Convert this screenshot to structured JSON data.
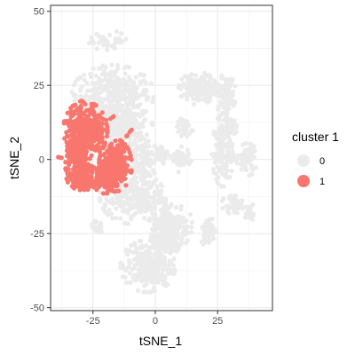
{
  "chart_data": {
    "type": "scatter",
    "xlabel": "tSNE_1",
    "ylabel": "tSNE_2",
    "xlim": [
      -42,
      47
    ],
    "ylim": [
      -51,
      52
    ],
    "x_ticks": [
      -25,
      0,
      25
    ],
    "x_tick_labels": [
      "-25",
      "0",
      "25"
    ],
    "y_ticks": [
      -50,
      -25,
      0,
      25,
      50
    ],
    "y_tick_labels": [
      "-50",
      "-25",
      "0",
      "25",
      "50"
    ],
    "grid": true,
    "theme": "bw",
    "legend": {
      "title": "cluster 1",
      "placement": "right",
      "entries": [
        {
          "label": "0",
          "color": "#ebebeb"
        },
        {
          "label": "1",
          "color": "#f8766d"
        }
      ]
    },
    "series": [
      {
        "name": "0",
        "color": "#ebebeb",
        "clusters": [
          {
            "cx": -17,
            "cy": 22,
            "rx": 15,
            "ry": 9,
            "n": 360
          },
          {
            "cx": -13,
            "cy": 10,
            "rx": 11,
            "ry": 8,
            "n": 260
          },
          {
            "cx": -24,
            "cy": 14,
            "rx": 8,
            "ry": 6,
            "n": 140
          },
          {
            "cx": 17,
            "cy": 24,
            "rx": 7,
            "ry": 5,
            "n": 160
          },
          {
            "cx": 28,
            "cy": 22,
            "rx": 4,
            "ry": 6,
            "n": 90
          },
          {
            "cx": 30,
            "cy": 11,
            "rx": 3,
            "ry": 3,
            "n": 40
          },
          {
            "cx": 12,
            "cy": 11,
            "rx": 3,
            "ry": 3,
            "n": 40
          },
          {
            "cx": 27,
            "cy": 3,
            "rx": 4,
            "ry": 11,
            "n": 150
          },
          {
            "cx": 37,
            "cy": 0,
            "rx": 4,
            "ry": 5,
            "n": 60
          },
          {
            "cx": 10,
            "cy": 0,
            "rx": 4,
            "ry": 4,
            "n": 50
          },
          {
            "cx": -5,
            "cy": 0,
            "rx": 6,
            "ry": 6,
            "n": 100
          },
          {
            "cx": 3,
            "cy": 2,
            "rx": 3,
            "ry": 3,
            "n": 30
          },
          {
            "cx": -9,
            "cy": -13,
            "rx": 12,
            "ry": 8,
            "n": 260
          },
          {
            "cx": 6,
            "cy": -22,
            "rx": 8,
            "ry": 8,
            "n": 170
          },
          {
            "cx": 21,
            "cy": -24,
            "rx": 3,
            "ry": 5,
            "n": 50
          },
          {
            "cx": 31,
            "cy": -15,
            "rx": 4,
            "ry": 3,
            "n": 40
          },
          {
            "cx": 38,
            "cy": -18,
            "rx": 2,
            "ry": 3,
            "n": 25
          },
          {
            "cx": -3,
            "cy": -36,
            "rx": 10,
            "ry": 8,
            "n": 260
          },
          {
            "cx": 4,
            "cy": -27,
            "rx": 6,
            "ry": 5,
            "n": 100
          },
          {
            "cx": -24,
            "cy": -23,
            "rx": 3,
            "ry": 2,
            "n": 20
          },
          {
            "cx": -18,
            "cy": 40,
            "rx": 8,
            "ry": 3,
            "n": 40
          }
        ]
      },
      {
        "name": "1",
        "color": "#f8766d",
        "clusters": [
          {
            "cx": -28,
            "cy": 10,
            "rx": 8,
            "ry": 9,
            "n": 330
          },
          {
            "cx": -31,
            "cy": 0,
            "rx": 5,
            "ry": 7,
            "n": 170
          },
          {
            "cx": -29,
            "cy": -6,
            "rx": 6,
            "ry": 4,
            "n": 120
          },
          {
            "cx": -16,
            "cy": -2,
            "rx": 6,
            "ry": 8,
            "n": 230
          },
          {
            "cx": -20,
            "cy": -6,
            "rx": 5,
            "ry": 5,
            "n": 120
          },
          {
            "cx": -38,
            "cy": 1,
            "rx": 1,
            "ry": 1,
            "n": 3
          },
          {
            "cx": -17,
            "cy": 14,
            "rx": 1,
            "ry": 1,
            "n": 3
          },
          {
            "cx": -10,
            "cy": 9,
            "rx": 1,
            "ry": 1,
            "n": 2
          },
          {
            "cx": -11,
            "cy": 8,
            "rx": 1,
            "ry": 1,
            "n": 2
          }
        ]
      }
    ]
  }
}
